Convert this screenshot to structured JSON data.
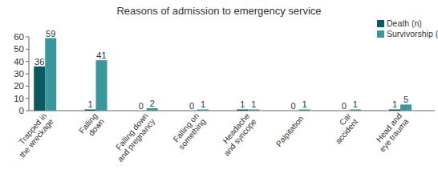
{
  "chart_data": {
    "type": "bar",
    "title": "Reasons of admission to emergency service",
    "categories": [
      "Trapped in the wreckage",
      "Falling down",
      "Falling down and pregnancy",
      "Falling on something",
      "Headache and syncope",
      "Palpitation",
      "Car accident",
      "Head and eye trauma"
    ],
    "series": [
      {
        "name": "Death (n)",
        "color": "#0b5a5f",
        "values": [
          36,
          1,
          0,
          0,
          1,
          0,
          0,
          1
        ]
      },
      {
        "name": "Survivorship (n)",
        "color": "#3a989c",
        "values": [
          59,
          41,
          2,
          1,
          1,
          1,
          1,
          5
        ]
      }
    ],
    "ylim": [
      0,
      60
    ],
    "yticks": [
      0,
      10,
      20,
      30,
      40,
      50,
      60
    ],
    "grid": false,
    "legend": "upper right",
    "data_labels": true
  }
}
